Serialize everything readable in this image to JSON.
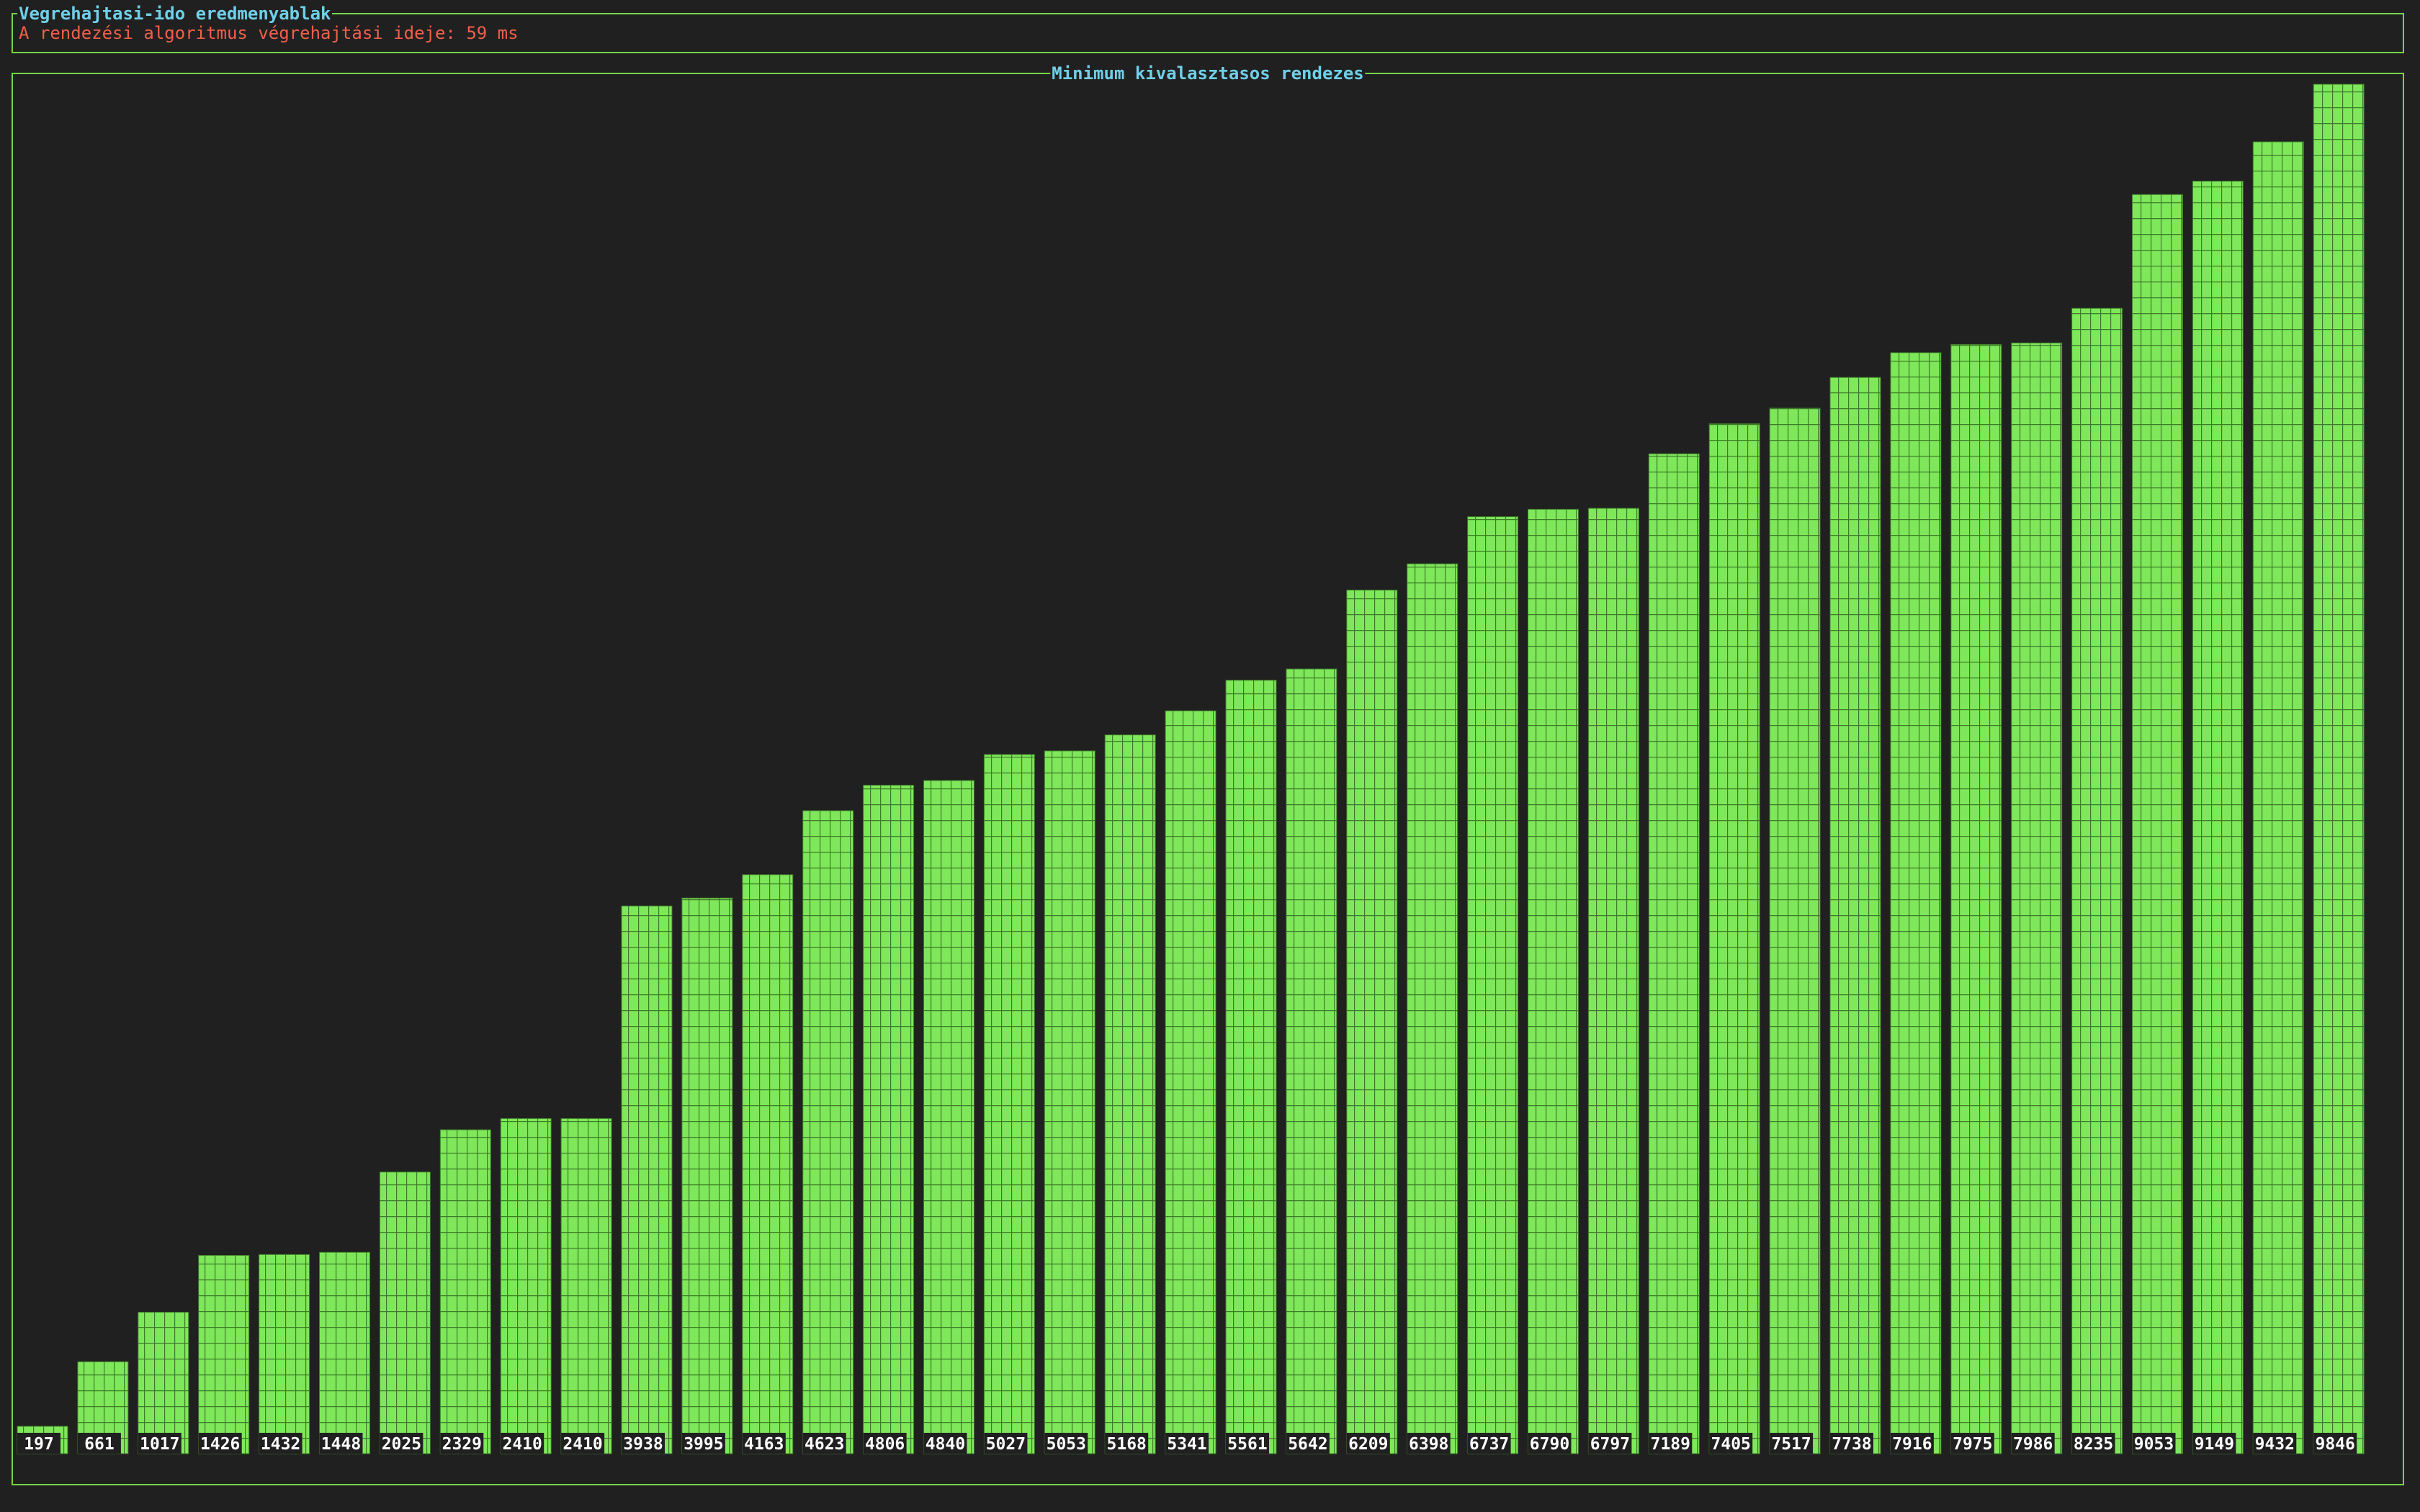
{
  "result_panel": {
    "title": "Vegrehajtasi-ido eredmenyablak",
    "message": "A rendezési algoritmus végrehajtási ideje: 59 ms"
  },
  "chart_panel": {
    "title": "Minimum kivalasztasos rendezes"
  },
  "colors": {
    "background": "#202020",
    "border": "#76d44a",
    "bar": "#7ee85a",
    "bar_grid": "#3f7a2a",
    "title": "#6fd0e8",
    "message": "#f0604a",
    "label": "#ffffff"
  },
  "chart_data": {
    "type": "bar",
    "title": "Minimum kivalasztasos rendezes",
    "xlabel": "",
    "ylabel": "",
    "ylim": [
      0,
      9846
    ],
    "grid": true,
    "legend": "none",
    "categories": [
      "197",
      "661",
      "1017",
      "1426",
      "1432",
      "1448",
      "2025",
      "2329",
      "2410",
      "2410",
      "3938",
      "3995",
      "4163",
      "4623",
      "4806",
      "4840",
      "5027",
      "5053",
      "5168",
      "5341",
      "5561",
      "5642",
      "6209",
      "6398",
      "6737",
      "6790",
      "6797",
      "7189",
      "7405",
      "7517",
      "7738",
      "7916",
      "7975",
      "7986",
      "8235",
      "9053",
      "9149",
      "9432",
      "9846"
    ],
    "values": [
      197,
      661,
      1017,
      1426,
      1432,
      1448,
      2025,
      2329,
      2410,
      2410,
      3938,
      3995,
      4163,
      4623,
      4806,
      4840,
      5027,
      5053,
      5168,
      5341,
      5561,
      5642,
      6209,
      6398,
      6737,
      6790,
      6797,
      7189,
      7405,
      7517,
      7738,
      7916,
      7975,
      7986,
      8235,
      9053,
      9149,
      9432,
      9846
    ]
  }
}
